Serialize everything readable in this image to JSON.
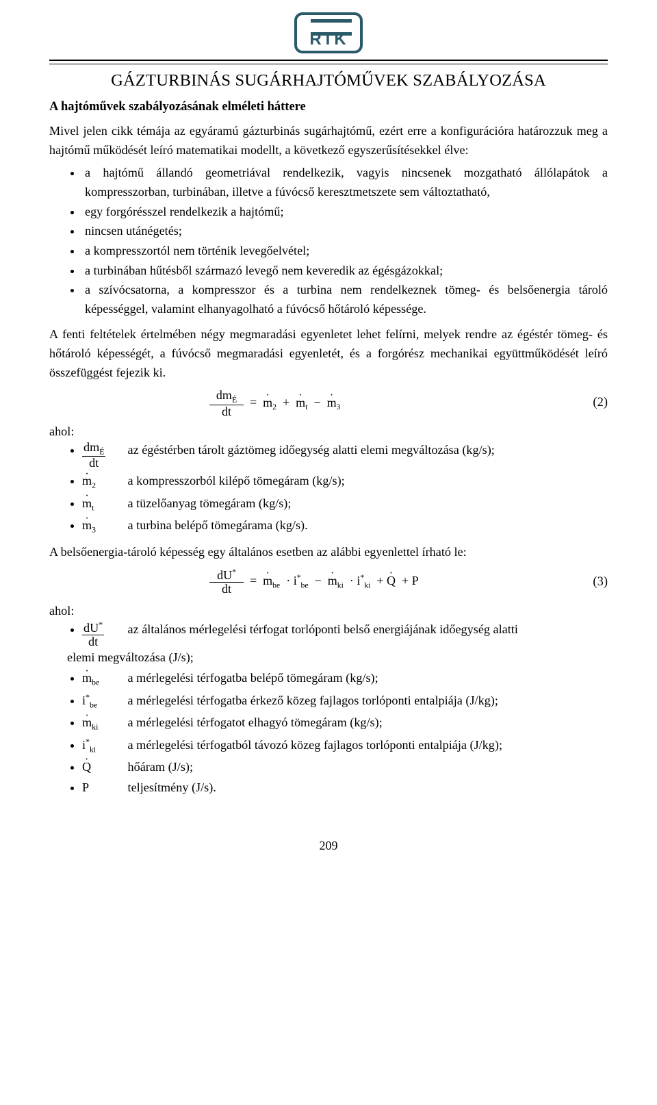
{
  "logo_text": "RTK",
  "title": "GÁZTURBINÁS SUGÁRHAJTÓMŰVEK SZABÁLYOZÁSA",
  "subtitle": "A hajtóművek szabályozásának elméleti háttere",
  "intro": "Mivel jelen cikk témája az egyáramú gázturbinás sugárhajtómű, ezért erre a konfigurációra határozzuk meg a hajtómű működését leíró matematikai modellt, a következő egyszerűsítésekkel élve:",
  "assumptions": [
    "a hajtómű állandó geometriával rendelkezik, vagyis nincsenek mozgatható állólapátok a kompresszorban, turbinában, illetve a fúvócső keresztmetszete sem változtatható,",
    "egy forgórésszel rendelkezik a hajtómű;",
    "nincsen utánégetés;",
    "a kompresszortól nem történik levegőelvétel;",
    "a turbinában hűtésből származó levegő nem keveredik az égésgázokkal;",
    "a szívócsatorna, a kompresszor és a turbina nem rendelkeznek tömeg- és belsőenergia tároló képességgel, valamint elhanyagolható a fúvócső hőtároló képessége."
  ],
  "para2": "A fenti feltételek értelmében négy megmaradási egyenletet lehet felírni, melyek rendre az égéstér tömeg- és hőtároló képességét, a fúvócső megmaradási egyenletét, és a forgórész mechanikai együttműködését leíró összefüggést fejezik ki.",
  "eq2": {
    "lhs_num": "dm",
    "lhs_num_sub": "É",
    "lhs_den": "dt",
    "r1": "ṁ",
    "r1_sub": "2",
    "r2": "ṁ",
    "r2_sub": "t",
    "r3": "ṁ",
    "r3_sub": "3",
    "num": "(2)"
  },
  "ahol": "ahol:",
  "defs2": [
    {
      "sym_html": "frac_dmE_dt",
      "desc": "az égéstérben tárolt gáztömeg időegység alatti elemi megváltozása (kg/s);"
    },
    {
      "sym_html": "m2",
      "desc": "a kompresszorból kilépő tömegáram (kg/s);"
    },
    {
      "sym_html": "mt",
      "desc": "a tüzelőanyag tömegáram (kg/s);"
    },
    {
      "sym_html": "m3",
      "desc": "a turbina belépő tömegárama (kg/s)."
    }
  ],
  "para3": "A belsőenergia-tároló képesség egy általános esetben az alábbi egyenlettel írható le:",
  "eq3": {
    "lhs_num": "dU",
    "lhs_sup": "*",
    "lhs_den": "dt",
    "t1a": "ṁ",
    "t1a_sub": "be",
    "t1b": "i",
    "t1b_sup": "*",
    "t1b_sub": "be",
    "t2a": "ṁ",
    "t2a_sub": "ki",
    "t2b": "i",
    "t2b_sup": "*",
    "t2b_sub": "ki",
    "t3": "Q̇",
    "t4": "P",
    "num": "(3)"
  },
  "defs3": [
    {
      "sym_html": "frac_dU_dt",
      "desc_pre": "az általános mérlegelési térfogat torlóponti belső energiájának időegység alatti",
      "desc_cont": "elemi megváltozása (J/s);"
    },
    {
      "sym_html": "mbe",
      "desc": "a mérlegelési térfogatba belépő tömegáram (kg/s);"
    },
    {
      "sym_html": "ibe",
      "desc": "a mérlegelési térfogatba érkező közeg fajlagos torlóponti entalpiája (J/kg);"
    },
    {
      "sym_html": "mki",
      "desc": "a mérlegelési térfogatot elhagyó tömegáram (kg/s);"
    },
    {
      "sym_html": "iki",
      "desc": "a mérlegelési térfogatból távozó közeg fajlagos torlóponti entalpiája (J/kg);"
    },
    {
      "sym_html": "Qdot",
      "desc": "hőáram (J/s);"
    },
    {
      "sym_html": "P",
      "desc": "teljesítmény (J/s)."
    }
  ],
  "page_number": "209"
}
